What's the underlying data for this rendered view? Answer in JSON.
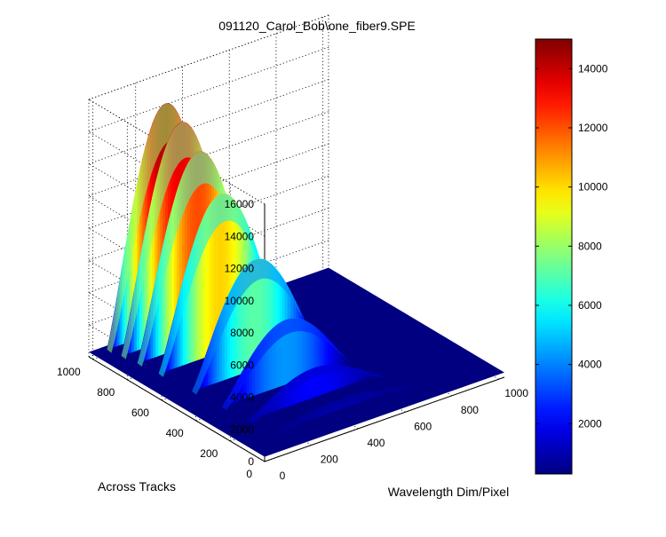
{
  "chart_data": {
    "type": "surface",
    "title": "091120_Carol_Bob\\one_fiber9.SPE",
    "xlabel": "Wavelength Dim/Pixel",
    "ylabel": "Across Tracks",
    "zlabel": "",
    "xlim": [
      0,
      1024
    ],
    "ylim": [
      0,
      1024
    ],
    "zlim": [
      0,
      16000
    ],
    "xticks": [
      "0",
      "200",
      "400",
      "600",
      "800",
      "1000"
    ],
    "yticks": [
      "0",
      "200",
      "400",
      "600",
      "800",
      "1000"
    ],
    "zticks": [
      "0",
      "2000",
      "4000",
      "6000",
      "8000",
      "10000",
      "12000",
      "14000",
      "16000"
    ],
    "colorbar": {
      "range": [
        300,
        15000
      ],
      "ticks": [
        "2000",
        "4000",
        "6000",
        "8000",
        "10000",
        "12000",
        "14000"
      ],
      "colormap": "jet"
    },
    "baseline": 300,
    "track_ridges": [
      {
        "across_track": 1000,
        "peak": 14000,
        "x_start": 60,
        "x_end": 560
      },
      {
        "across_track": 930,
        "peak": 13200,
        "x_start": 70,
        "x_end": 580
      },
      {
        "across_track": 850,
        "peak": 11800,
        "x_start": 80,
        "x_end": 600
      },
      {
        "across_track": 740,
        "peak": 9800,
        "x_start": 90,
        "x_end": 620
      },
      {
        "across_track": 560,
        "peak": 6800,
        "x_start": 100,
        "x_end": 640
      },
      {
        "across_track": 400,
        "peak": 4000,
        "x_start": 110,
        "x_end": 660
      },
      {
        "across_track": 260,
        "peak": 1800,
        "x_start": 120,
        "x_end": 680
      },
      {
        "across_track": 130,
        "peak": 600,
        "x_start": 130,
        "x_end": 700
      }
    ]
  }
}
